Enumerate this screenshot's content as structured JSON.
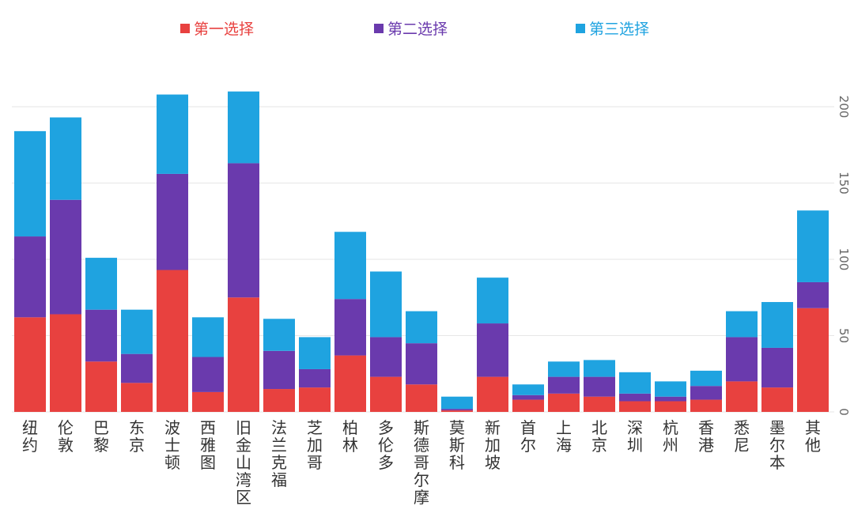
{
  "chart_data": {
    "type": "bar",
    "stacked": true,
    "title": "",
    "xlabel": "",
    "ylabel": "",
    "ylim": [
      0,
      220
    ],
    "yticks": [
      0,
      50,
      100,
      150,
      200
    ],
    "grid": true,
    "legend_position": "top",
    "categories": [
      "纽约",
      "伦敦",
      "巴黎",
      "东京",
      "波士顿",
      "西雅图",
      "旧金山湾区",
      "法兰克福",
      "芝加哥",
      "柏林",
      "多伦多",
      "斯德哥尔摩",
      "莫斯科",
      "新加坡",
      "首尔",
      "上海",
      "北京",
      "深圳",
      "杭州",
      "香港",
      "悉尼",
      "墨尔本",
      "其他"
    ],
    "series": [
      {
        "name": "第一选择",
        "color": "#e8413f",
        "values": [
          62,
          64,
          33,
          19,
          93,
          13,
          75,
          15,
          16,
          37,
          23,
          18,
          1,
          23,
          8,
          12,
          10,
          7,
          7,
          8,
          20,
          16,
          68
        ]
      },
      {
        "name": "第二选择",
        "color": "#6a3aad",
        "values": [
          53,
          75,
          34,
          19,
          63,
          23,
          88,
          25,
          12,
          37,
          26,
          27,
          1,
          35,
          3,
          11,
          13,
          5,
          3,
          9,
          29,
          26,
          17
        ]
      },
      {
        "name": "第三选择",
        "color": "#1fa3e0",
        "values": [
          69,
          54,
          34,
          29,
          52,
          26,
          47,
          21,
          21,
          44,
          43,
          21,
          8,
          30,
          7,
          10,
          11,
          14,
          10,
          10,
          17,
          30,
          47
        ]
      }
    ]
  }
}
